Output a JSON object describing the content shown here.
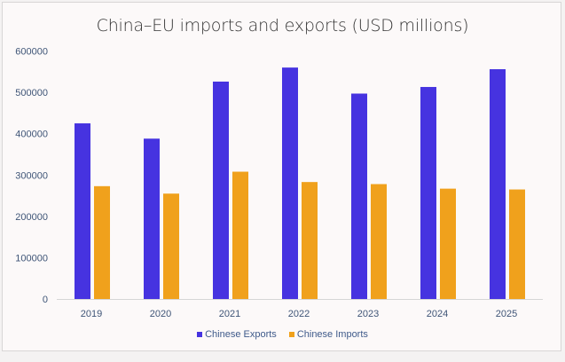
{
  "chart_data": {
    "type": "bar",
    "title": "China–EU imports and exports (USD millions)",
    "categories": [
      "2019",
      "2020",
      "2021",
      "2022",
      "2023",
      "2024",
      "2025"
    ],
    "series": [
      {
        "name": "Chinese Exports",
        "color": "#4633e0",
        "values": [
          425000,
          388000,
          526000,
          560000,
          497000,
          513000,
          556000
        ]
      },
      {
        "name": "Chinese Imports",
        "color": "#f0a11c",
        "values": [
          273000,
          255000,
          308000,
          283000,
          278000,
          267000,
          265000
        ]
      }
    ],
    "ylim": [
      0,
      600000
    ],
    "yticks": [
      "0",
      "100000",
      "200000",
      "300000",
      "400000",
      "500000",
      "600000"
    ],
    "grid": false,
    "legend": "bottom"
  }
}
